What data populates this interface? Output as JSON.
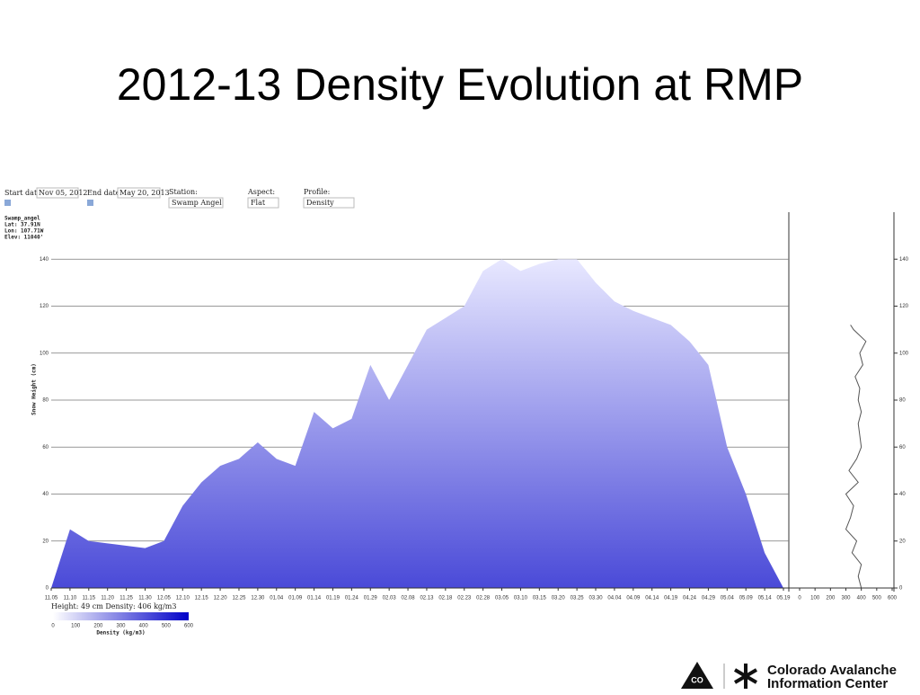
{
  "slide_title": "2012-13 Density Evolution at RMP",
  "controls": {
    "start_label": "Start date:",
    "start_value": "Nov 05, 2012",
    "end_label": "End date:",
    "end_value": "May 20, 2013",
    "station_label": "Station:",
    "station_value": "Swamp Angel",
    "aspect_label": "Aspect:",
    "aspect_value": "Flat",
    "profile_label": "Profile:",
    "profile_value": "Density"
  },
  "station_info": [
    "Swamp_angel",
    "Lat: 37.91N",
    "Lon: 107.71W",
    "Elev: 11040'"
  ],
  "readout": "Height: 49 cm Density: 406 kg/m3",
  "logo": {
    "badge": "CO",
    "line1": "Colorado Avalanche",
    "line2": "Information Center"
  },
  "chart_data": [
    {
      "type": "area",
      "y_label": "Snow Height (cm)",
      "color": "#4a4ad8",
      "categories": [
        "11.05",
        "11.10",
        "11.15",
        "11.20",
        "11.25",
        "11.30",
        "12.05",
        "12.10",
        "12.15",
        "12.20",
        "12.25",
        "12.30",
        "01.04",
        "01.09",
        "01.14",
        "01.19",
        "01.24",
        "01.29",
        "02.03",
        "02.08",
        "02.13",
        "02.18",
        "02.23",
        "02.28",
        "03.05",
        "03.10",
        "03.15",
        "03.20",
        "03.25",
        "03.30",
        "04.04",
        "04.09",
        "04.14",
        "04.19",
        "04.24",
        "04.29",
        "05.04",
        "05.09",
        "05.14",
        "05.19"
      ],
      "values": [
        0,
        25,
        20,
        19,
        18,
        17,
        20,
        35,
        45,
        52,
        55,
        62,
        55,
        52,
        75,
        68,
        72,
        95,
        80,
        95,
        110,
        115,
        120,
        135,
        140,
        135,
        138,
        140,
        140,
        130,
        122,
        118,
        115,
        112,
        105,
        95,
        60,
        40,
        15,
        0
      ],
      "ylim": [
        0,
        160
      ],
      "yticks": [
        0,
        20,
        40,
        60,
        80,
        100,
        120,
        140
      ],
      "grid": true,
      "colorbar": {
        "label": "Density (kg/m3)",
        "lim": [
          0,
          600
        ],
        "ticks": [
          0,
          100,
          200,
          300,
          400,
          500,
          600
        ]
      }
    },
    {
      "type": "line",
      "color": "#555555",
      "x": [
        400,
        380,
        400,
        340,
        370,
        300,
        330,
        350,
        300,
        380,
        320,
        370,
        400,
        390,
        380,
        400,
        380,
        390,
        360,
        410,
        390,
        430,
        350,
        330
      ],
      "y": [
        0,
        5,
        10,
        15,
        20,
        25,
        30,
        35,
        40,
        45,
        50,
        55,
        60,
        65,
        70,
        75,
        80,
        85,
        90,
        95,
        100,
        105,
        110,
        112
      ],
      "xlim": [
        0,
        600
      ],
      "xticks": [
        0,
        100,
        200,
        300,
        400,
        500,
        600
      ],
      "ylim": [
        0,
        160
      ]
    }
  ]
}
